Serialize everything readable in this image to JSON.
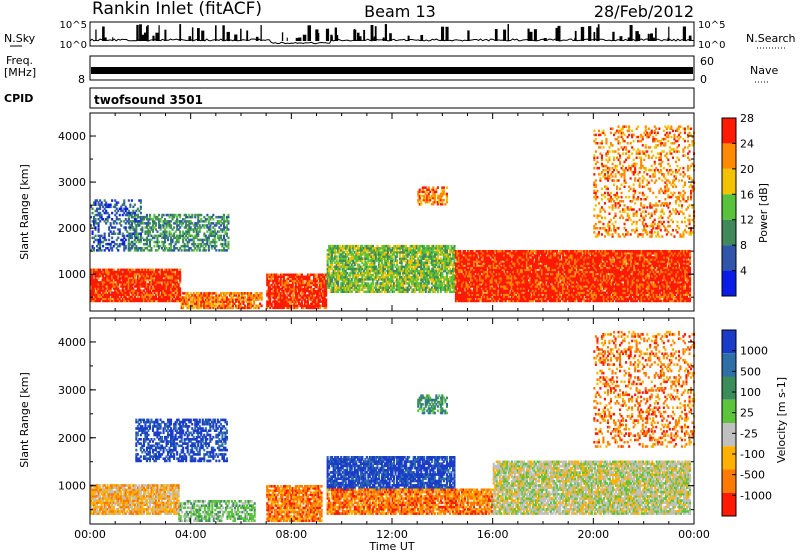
{
  "header": {
    "title": "Rankin Inlet (fitACF)",
    "beam": "Beam 13",
    "date": "28/Feb/2012"
  },
  "noise_panel": {
    "left_label": "N.Sky",
    "right_label": "N.Search",
    "left_ticks": [
      "10^5",
      "10^0"
    ],
    "right_ticks": [
      "10^5",
      "10^0"
    ]
  },
  "freq_panel": {
    "left_label_line1": "Freq.",
    "left_label_line2": "[MHz]",
    "right_label": "Nave",
    "left_ticks": [
      "8"
    ],
    "right_ticks": [
      "60",
      "0"
    ]
  },
  "cpid_panel": {
    "left_label": "CPID",
    "program": "twofsound 3501"
  },
  "chart_data": [
    {
      "type": "heatmap",
      "panel": "power",
      "ylabel": "Slant Range [km]",
      "y_ticks": [
        "1000",
        "2000",
        "3000",
        "4000"
      ],
      "ylim": [
        200,
        4500
      ],
      "xlim": [
        0,
        24
      ],
      "colorbar_label": "Power [dB]",
      "colorbar_ticks": [
        "4",
        "8",
        "12",
        "16",
        "20",
        "24",
        "28"
      ],
      "colors": [
        "#0a1de6",
        "#2f56aa",
        "#3f8a58",
        "#58c23a",
        "#f2c200",
        "#ff8a00",
        "#ff1a00"
      ],
      "scatter_regions": [
        {
          "t0": 0.0,
          "t1": 3.6,
          "r0": 400,
          "r1": 1100,
          "level": 6,
          "density": 0.9
        },
        {
          "t0": 3.6,
          "t1": 6.8,
          "r0": 250,
          "r1": 600,
          "level": 5,
          "density": 0.8
        },
        {
          "t0": 7.0,
          "t1": 9.4,
          "r0": 250,
          "r1": 1000,
          "level": 6,
          "density": 0.85
        },
        {
          "t0": 9.4,
          "t1": 14.5,
          "r0": 600,
          "r1": 1600,
          "level": 3,
          "density": 0.8
        },
        {
          "t0": 14.5,
          "t1": 23.8,
          "r0": 400,
          "r1": 1500,
          "level": 6,
          "density": 0.95
        },
        {
          "t0": 1.5,
          "t1": 5.5,
          "r0": 1500,
          "r1": 2300,
          "level": 2,
          "density": 0.5
        },
        {
          "t0": 0.0,
          "t1": 2.0,
          "r0": 1500,
          "r1": 2600,
          "level": 1,
          "density": 0.35
        },
        {
          "t0": 13.0,
          "t1": 14.2,
          "r0": 2500,
          "r1": 2900,
          "level": 5,
          "density": 0.6
        },
        {
          "t0": 20.0,
          "t1": 24.0,
          "r0": 1800,
          "r1": 4200,
          "level": 5,
          "density": 0.25
        }
      ]
    },
    {
      "type": "heatmap",
      "panel": "velocity",
      "ylabel": "Slant Range [km]",
      "xlabel": "Time UT",
      "x_ticks": [
        "00:00",
        "04:00",
        "08:00",
        "12:00",
        "16:00",
        "20:00",
        "00:00"
      ],
      "y_ticks": [
        "1000",
        "2000",
        "3000",
        "4000"
      ],
      "ylim": [
        200,
        4500
      ],
      "xlim": [
        0,
        24
      ],
      "colorbar_label": "Velocity [m s-1]",
      "colorbar_ticks": [
        "1000",
        "500",
        "100",
        "25",
        "-25",
        "-100",
        "-500",
        "-1000"
      ],
      "colors": [
        "#1a3cc8",
        "#2f6fa8",
        "#3a8c5a",
        "#5cc43c",
        "#c0c0c0",
        "#ffb000",
        "#ff7a00",
        "#ff1a00"
      ],
      "scatter_regions": [
        {
          "t0": 0.0,
          "t1": 3.5,
          "r0": 400,
          "r1": 1000,
          "level": 5,
          "density": 0.85
        },
        {
          "t0": 3.5,
          "t1": 6.5,
          "r0": 250,
          "r1": 700,
          "level": 3,
          "density": 0.55
        },
        {
          "t0": 7.0,
          "t1": 9.2,
          "r0": 250,
          "r1": 1000,
          "level": 6,
          "density": 0.8
        },
        {
          "t0": 9.4,
          "t1": 14.5,
          "r0": 900,
          "r1": 1600,
          "level": 0,
          "density": 0.8
        },
        {
          "t0": 9.4,
          "t1": 16.0,
          "r0": 400,
          "r1": 900,
          "level": 6,
          "density": 0.8
        },
        {
          "t0": 16.0,
          "t1": 23.8,
          "r0": 400,
          "r1": 1500,
          "level": 4,
          "density": 0.85
        },
        {
          "t0": 1.8,
          "t1": 5.4,
          "r0": 1500,
          "r1": 2400,
          "level": 0,
          "density": 0.55
        },
        {
          "t0": 13.0,
          "t1": 14.2,
          "r0": 2500,
          "r1": 2900,
          "level": 2,
          "density": 0.6
        },
        {
          "t0": 20.0,
          "t1": 24.0,
          "r0": 1800,
          "r1": 4200,
          "level": 6,
          "density": 0.25
        }
      ]
    }
  ]
}
